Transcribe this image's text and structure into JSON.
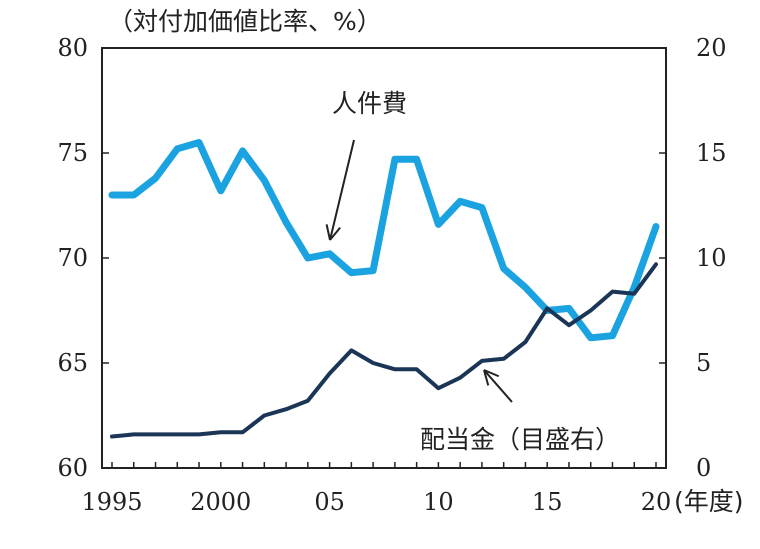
{
  "chart_data": {
    "type": "line",
    "left_axis_label": "（対付加価値比率、%）",
    "x_unit_label": "(年度)",
    "x_ticks": [
      "1995",
      "2000",
      "05",
      "10",
      "15",
      "20"
    ],
    "y_left_ticks": [
      "60",
      "65",
      "70",
      "75",
      "80"
    ],
    "y_right_ticks": [
      "0",
      "5",
      "10",
      "15",
      "20"
    ],
    "ylim_left": [
      60,
      80
    ],
    "ylim_right": [
      0,
      20
    ],
    "xlim": [
      1995,
      2020
    ],
    "x": [
      1995,
      1996,
      1997,
      1998,
      1999,
      2000,
      2001,
      2002,
      2003,
      2004,
      2005,
      2006,
      2007,
      2008,
      2009,
      2010,
      2011,
      2012,
      2013,
      2014,
      2015,
      2016,
      2017,
      2018,
      2019,
      2020
    ],
    "series": [
      {
        "name": "人件費",
        "axis": "left",
        "color": "#1aa3e0",
        "values": [
          73.0,
          73.0,
          73.8,
          75.2,
          75.5,
          73.2,
          75.1,
          73.7,
          71.7,
          70.0,
          70.2,
          69.3,
          69.4,
          74.7,
          74.7,
          71.6,
          72.7,
          72.4,
          69.5,
          68.6,
          67.5,
          67.6,
          66.2,
          66.3,
          68.6,
          71.5
        ]
      },
      {
        "name": "配当金（目盛右）",
        "axis": "right",
        "color": "#1b3556",
        "values": [
          1.5,
          1.6,
          1.6,
          1.6,
          1.6,
          1.7,
          1.7,
          2.5,
          2.8,
          3.2,
          4.5,
          5.6,
          5.0,
          4.7,
          4.7,
          3.8,
          4.3,
          5.1,
          5.2,
          6.0,
          7.6,
          6.8,
          7.5,
          8.4,
          8.3,
          9.7
        ]
      }
    ],
    "annotations": [
      {
        "text": "人件費"
      },
      {
        "text": "配当金（目盛右）"
      }
    ]
  }
}
